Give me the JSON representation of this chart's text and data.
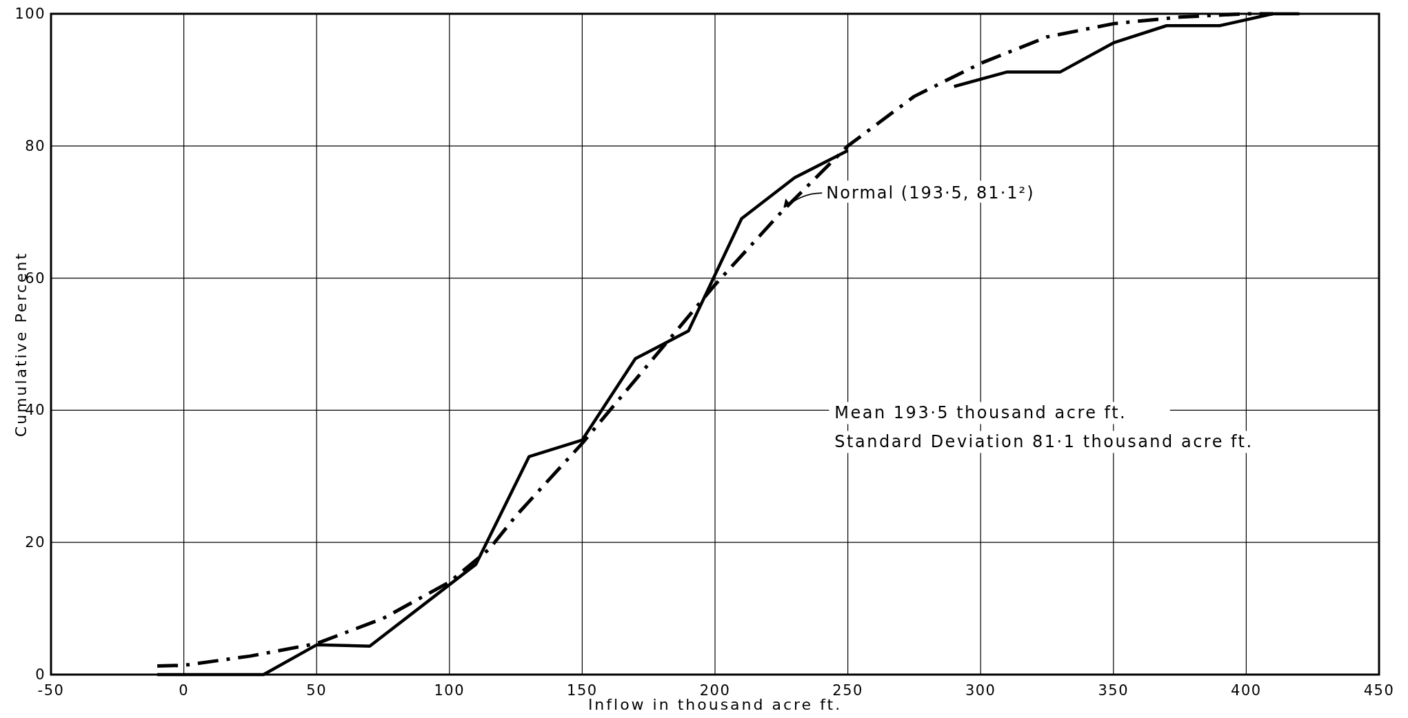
{
  "chart_data": {
    "type": "line",
    "xlabel": "Inflow in thousand acre ft.",
    "ylabel": "Cumulative Percent",
    "xlim": [
      -50,
      450
    ],
    "xticks": [
      -50,
      0,
      50,
      100,
      150,
      200,
      250,
      300,
      350,
      400,
      450
    ],
    "ylim": [
      0,
      100
    ],
    "yticks": [
      0,
      20,
      40,
      60,
      80,
      100
    ],
    "grid": true,
    "marker": "none",
    "series": [
      {
        "color": "#000000",
        "line_style": "solid",
        "x": [
          -10,
          30,
          50,
          70,
          110,
          130,
          150,
          170,
          190,
          210,
          230,
          250,
          270,
          290,
          310,
          330,
          350,
          370,
          390,
          410,
          420
        ],
        "values": [
          0,
          0,
          4.5,
          4.3,
          16.7,
          33,
          35.5,
          47.8,
          52,
          69,
          75.2,
          79.3,
          null,
          89,
          91.2,
          91.2,
          95.6,
          98.2,
          98.2,
          100,
          100
        ]
      },
      {
        "color": "#000000",
        "line_style": "dashed",
        "x": [
          -10,
          0,
          25,
          50,
          75,
          100,
          115,
          125,
          150,
          175,
          200,
          225,
          250,
          275,
          300,
          325,
          350,
          375,
          400,
          410
        ],
        "values": [
          1.3,
          1.4,
          2.8,
          4.7,
          8.5,
          14,
          19,
          24,
          35,
          47,
          59,
          70,
          80,
          87.5,
          92.5,
          96.5,
          98.5,
          99.5,
          100,
          100
        ]
      }
    ],
    "annotations": [
      {
        "text": "Normal (193·5, 81·1²)",
        "x": 225,
        "y": 71
      },
      "Mean  193·5 thousand acre ft.",
      "Standard  Deviation  81·1 thousand acre ft."
    ]
  }
}
